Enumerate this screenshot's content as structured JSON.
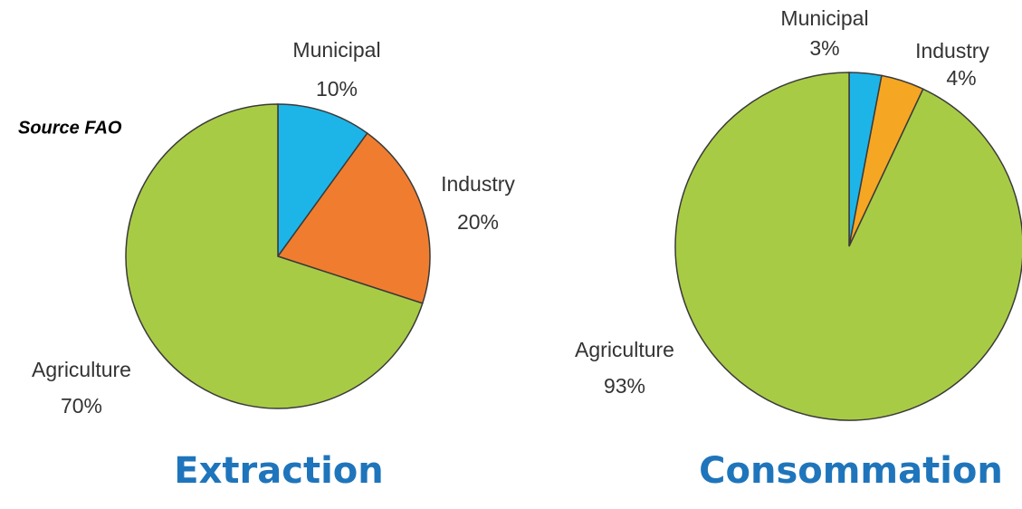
{
  "chart_data": [
    {
      "type": "pie",
      "title": "Extraction",
      "categories": [
        "Municipal",
        "Industry",
        "Agriculture"
      ],
      "values": [
        10,
        20,
        70
      ],
      "value_labels": [
        "10%",
        "20%",
        "70%"
      ],
      "colors": [
        "#1db5e8",
        "#f07d2f",
        "#a8cb45"
      ]
    },
    {
      "type": "pie",
      "title": "Consommation",
      "categories": [
        "Municipal",
        "Industry",
        "Agriculture"
      ],
      "values": [
        3,
        4,
        93
      ],
      "value_labels": [
        "3%",
        "4%",
        "93%"
      ],
      "colors": [
        "#1db5e8",
        "#f5a623",
        "#a8cb45"
      ]
    }
  ],
  "source": "Source FAO"
}
